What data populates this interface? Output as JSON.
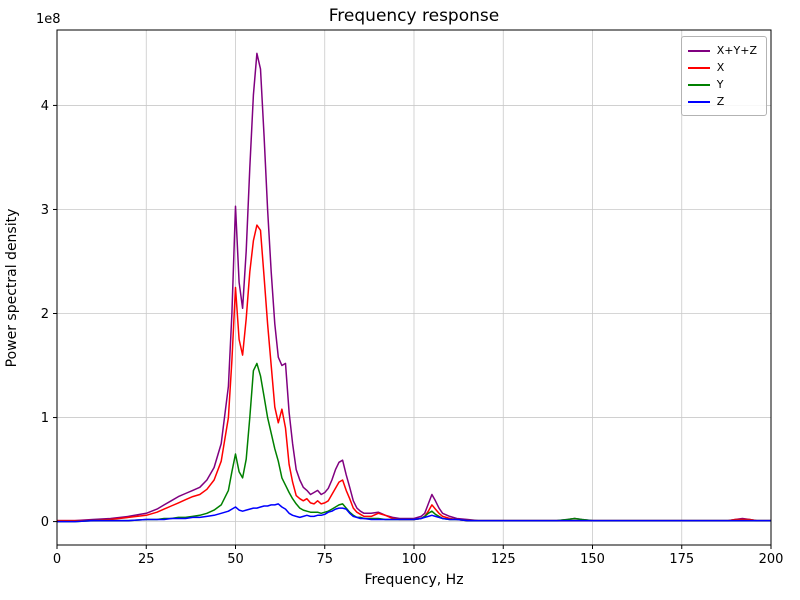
{
  "chart_data": {
    "type": "line",
    "title": "Frequency response",
    "xlabel": "Frequency, Hz",
    "ylabel": "Power spectral density",
    "y_scale_factor": "1e8",
    "xlim": [
      0,
      200
    ],
    "ylim": [
      -0.225,
      4.725
    ],
    "xticks": [
      0,
      25,
      50,
      75,
      100,
      125,
      150,
      175,
      200
    ],
    "yticks": [
      0,
      1,
      2,
      3,
      4
    ],
    "grid": true,
    "legend_position": "upper right",
    "x": [
      0,
      5,
      10,
      15,
      20,
      25,
      28,
      30,
      32,
      34,
      36,
      38,
      40,
      42,
      44,
      46,
      48,
      49,
      50,
      51,
      52,
      53,
      54,
      55,
      56,
      57,
      58,
      59,
      60,
      61,
      62,
      63,
      64,
      65,
      66,
      67,
      68,
      69,
      70,
      71,
      72,
      73,
      74,
      75,
      76,
      77,
      78,
      79,
      80,
      81,
      82,
      83,
      84,
      85,
      86,
      88,
      90,
      92,
      94,
      96,
      98,
      100,
      102,
      103,
      104,
      105,
      106,
      107,
      108,
      110,
      112,
      115,
      118,
      120,
      125,
      130,
      135,
      140,
      143,
      145,
      147,
      150,
      155,
      160,
      165,
      170,
      175,
      180,
      185,
      188,
      190,
      192,
      194,
      196,
      198,
      200
    ],
    "series": [
      {
        "name": "X+Y+Z",
        "color": "#800080",
        "values": [
          0.01,
          0.01,
          0.02,
          0.03,
          0.05,
          0.08,
          0.12,
          0.16,
          0.2,
          0.24,
          0.27,
          0.3,
          0.33,
          0.4,
          0.52,
          0.75,
          1.3,
          2.0,
          3.03,
          2.3,
          2.05,
          2.6,
          3.4,
          4.1,
          4.5,
          4.35,
          3.7,
          3.0,
          2.4,
          1.9,
          1.58,
          1.5,
          1.52,
          1.05,
          0.75,
          0.5,
          0.4,
          0.33,
          0.3,
          0.26,
          0.28,
          0.3,
          0.26,
          0.28,
          0.32,
          0.4,
          0.5,
          0.57,
          0.59,
          0.45,
          0.33,
          0.2,
          0.13,
          0.1,
          0.08,
          0.08,
          0.09,
          0.06,
          0.04,
          0.03,
          0.03,
          0.03,
          0.05,
          0.08,
          0.17,
          0.26,
          0.2,
          0.13,
          0.08,
          0.05,
          0.03,
          0.02,
          0.01,
          0.01,
          0.01,
          0.01,
          0.01,
          0.01,
          0.02,
          0.03,
          0.02,
          0.01,
          0.01,
          0.01,
          0.01,
          0.01,
          0.01,
          0.01,
          0.01,
          0.01,
          0.02,
          0.03,
          0.02,
          0.01,
          0.01,
          0.01
        ]
      },
      {
        "name": "X",
        "color": "#ff0000",
        "values": [
          0.01,
          0.01,
          0.01,
          0.02,
          0.04,
          0.06,
          0.09,
          0.12,
          0.15,
          0.18,
          0.21,
          0.24,
          0.26,
          0.31,
          0.4,
          0.58,
          1.0,
          1.55,
          2.25,
          1.75,
          1.6,
          1.95,
          2.4,
          2.7,
          2.85,
          2.8,
          2.35,
          1.9,
          1.5,
          1.1,
          0.95,
          1.08,
          0.9,
          0.55,
          0.38,
          0.25,
          0.22,
          0.2,
          0.22,
          0.18,
          0.17,
          0.2,
          0.17,
          0.18,
          0.2,
          0.26,
          0.32,
          0.38,
          0.4,
          0.3,
          0.22,
          0.13,
          0.09,
          0.07,
          0.05,
          0.05,
          0.08,
          0.06,
          0.03,
          0.02,
          0.02,
          0.02,
          0.03,
          0.05,
          0.1,
          0.16,
          0.12,
          0.08,
          0.05,
          0.03,
          0.02,
          0.01,
          0.01,
          0.01,
          0.01,
          0.01,
          0.01,
          0.01,
          0.01,
          0.01,
          0.01,
          0.01,
          0.01,
          0.01,
          0.01,
          0.01,
          0.01,
          0.01,
          0.01,
          0.01,
          0.02,
          0.02,
          0.02,
          0.01,
          0.01,
          0.01
        ]
      },
      {
        "name": "Y",
        "color": "#008000",
        "values": [
          0.0,
          0.0,
          0.01,
          0.01,
          0.01,
          0.02,
          0.02,
          0.03,
          0.03,
          0.04,
          0.04,
          0.05,
          0.06,
          0.08,
          0.11,
          0.16,
          0.3,
          0.48,
          0.65,
          0.48,
          0.42,
          0.6,
          1.0,
          1.45,
          1.52,
          1.4,
          1.2,
          1.0,
          0.85,
          0.7,
          0.58,
          0.42,
          0.35,
          0.28,
          0.22,
          0.17,
          0.13,
          0.11,
          0.1,
          0.09,
          0.09,
          0.09,
          0.08,
          0.09,
          0.1,
          0.12,
          0.14,
          0.16,
          0.17,
          0.13,
          0.09,
          0.06,
          0.04,
          0.04,
          0.03,
          0.03,
          0.03,
          0.02,
          0.02,
          0.02,
          0.02,
          0.02,
          0.03,
          0.05,
          0.08,
          0.1,
          0.07,
          0.05,
          0.03,
          0.02,
          0.02,
          0.01,
          0.01,
          0.01,
          0.01,
          0.01,
          0.01,
          0.01,
          0.02,
          0.03,
          0.02,
          0.01,
          0.01,
          0.01,
          0.01,
          0.01,
          0.01,
          0.01,
          0.01,
          0.01,
          0.01,
          0.01,
          0.01,
          0.01,
          0.01,
          0.01
        ]
      },
      {
        "name": "Z",
        "color": "#0000ff",
        "values": [
          0.0,
          0.0,
          0.01,
          0.01,
          0.01,
          0.02,
          0.02,
          0.02,
          0.03,
          0.03,
          0.03,
          0.04,
          0.04,
          0.05,
          0.06,
          0.08,
          0.1,
          0.12,
          0.14,
          0.11,
          0.1,
          0.11,
          0.12,
          0.13,
          0.13,
          0.14,
          0.15,
          0.15,
          0.16,
          0.16,
          0.17,
          0.14,
          0.12,
          0.08,
          0.06,
          0.05,
          0.04,
          0.05,
          0.06,
          0.05,
          0.05,
          0.06,
          0.06,
          0.07,
          0.09,
          0.1,
          0.12,
          0.13,
          0.13,
          0.12,
          0.08,
          0.05,
          0.04,
          0.03,
          0.03,
          0.02,
          0.02,
          0.02,
          0.02,
          0.02,
          0.02,
          0.02,
          0.03,
          0.04,
          0.05,
          0.06,
          0.05,
          0.04,
          0.03,
          0.02,
          0.02,
          0.01,
          0.01,
          0.01,
          0.01,
          0.01,
          0.01,
          0.01,
          0.01,
          0.01,
          0.01,
          0.01,
          0.01,
          0.01,
          0.01,
          0.01,
          0.01,
          0.01,
          0.01,
          0.01,
          0.01,
          0.01,
          0.01,
          0.01,
          0.01,
          0.01
        ]
      }
    ]
  }
}
